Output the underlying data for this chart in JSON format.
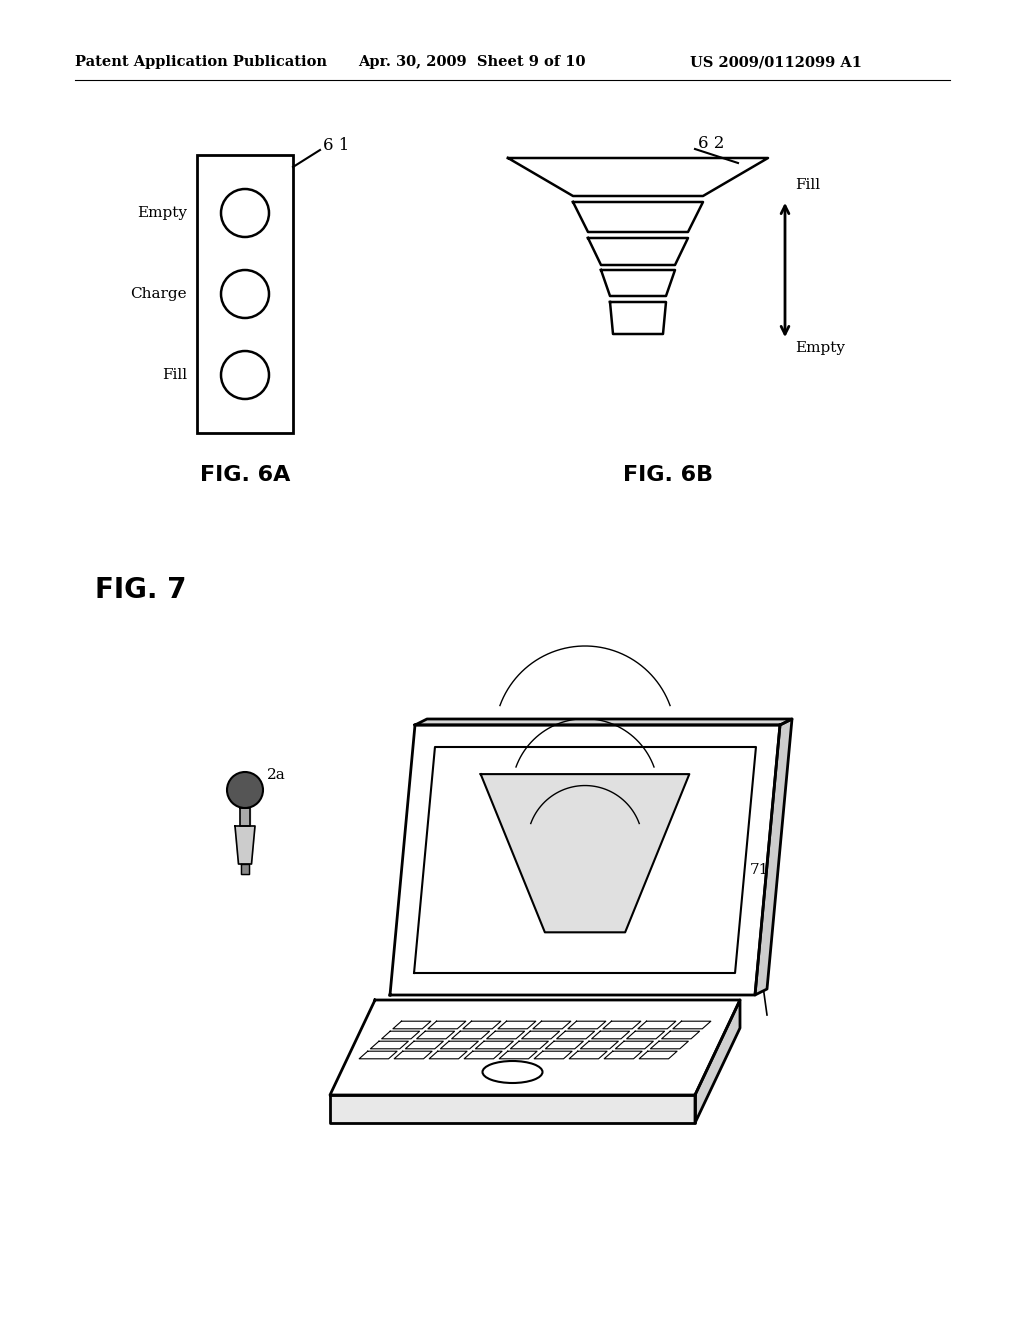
{
  "bg_color": "#ffffff",
  "header_left": "Patent Application Publication",
  "header_mid": "Apr. 30, 2009  Sheet 9 of 10",
  "header_right": "US 2009/0112099 A1",
  "fig6a_label": "FIG. 6A",
  "fig6b_label": "FIG. 6B",
  "fig7_label": "FIG. 7",
  "label_61": "6 1",
  "label_62": "6 2",
  "label_2a": "2a",
  "label_71": "71",
  "box_labels": [
    "Empty",
    "Charge",
    "Fill"
  ],
  "fill_label": "Fill",
  "empty_label": "Empty"
}
